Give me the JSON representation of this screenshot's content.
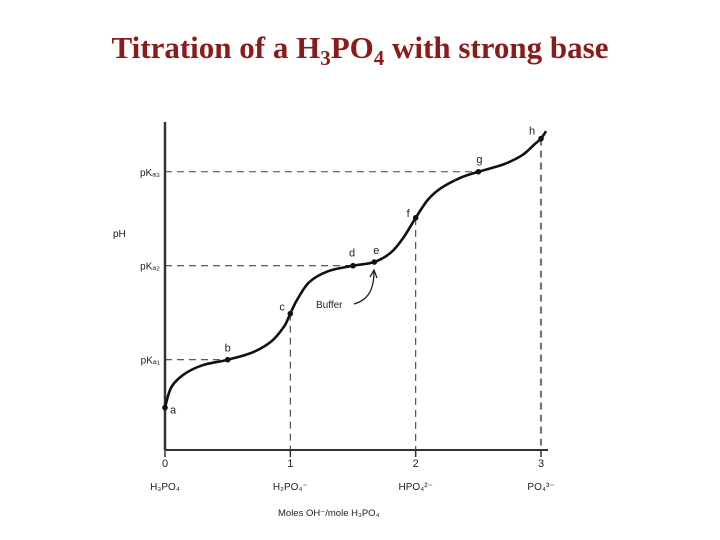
{
  "slide": {
    "title_prefix": "Titration of a H",
    "title_sub1": "3",
    "title_mid": "PO",
    "title_sub2": "4",
    "title_suffix": " with strong base"
  },
  "chart_data": {
    "type": "line",
    "title": "",
    "xlabel": "Moles OH⁻/mole H₃PO₄",
    "ylabel": "pH",
    "xlim": [
      0,
      3
    ],
    "x_ticks": [
      {
        "value": 0,
        "number": "0",
        "species": "H₃PO₄"
      },
      {
        "value": 1,
        "number": "1",
        "species": "H₂PO₄⁻"
      },
      {
        "value": 2,
        "number": "2",
        "species": "HPO₄²⁻"
      },
      {
        "value": 3,
        "number": "3",
        "species": "PO₄³⁻"
      }
    ],
    "y_ticks": [
      {
        "value": 2.1,
        "label": "pKₐ₁"
      },
      {
        "value": 7.2,
        "label": "pKₐ₂"
      },
      {
        "value": 12.3,
        "label": "pKₐ₃"
      }
    ],
    "ylim": [
      -2.8,
      15
    ],
    "points": [
      {
        "name": "a",
        "x": 0.0,
        "y": -0.5
      },
      {
        "name": "b",
        "x": 0.5,
        "y": 2.1
      },
      {
        "name": "c",
        "x": 1.0,
        "y": 4.6
      },
      {
        "name": "d",
        "x": 1.5,
        "y": 7.2
      },
      {
        "name": "e",
        "x": 1.67,
        "y": 7.4
      },
      {
        "name": "f",
        "x": 2.0,
        "y": 9.8
      },
      {
        "name": "g",
        "x": 2.5,
        "y": 12.3
      },
      {
        "name": "h",
        "x": 3.0,
        "y": 14.1
      }
    ],
    "curve": {
      "x": [
        0.0,
        0.05,
        0.15,
        0.3,
        0.5,
        0.7,
        0.85,
        0.95,
        1.0,
        1.05,
        1.15,
        1.3,
        1.5,
        1.67,
        1.8,
        1.9,
        2.0,
        2.1,
        2.2,
        2.35,
        2.5,
        2.7,
        2.85,
        2.95,
        3.0,
        3.04
      ],
      "y": [
        -0.5,
        0.6,
        1.3,
        1.8,
        2.1,
        2.5,
        3.1,
        3.9,
        4.6,
        5.3,
        6.3,
        6.9,
        7.2,
        7.4,
        7.9,
        8.7,
        9.8,
        10.8,
        11.4,
        11.95,
        12.3,
        12.7,
        13.2,
        13.8,
        14.1,
        14.5
      ]
    },
    "annotations": [
      {
        "text": "Buffer",
        "target": "e"
      }
    ],
    "grid": false,
    "reference_lines": "dashed"
  }
}
